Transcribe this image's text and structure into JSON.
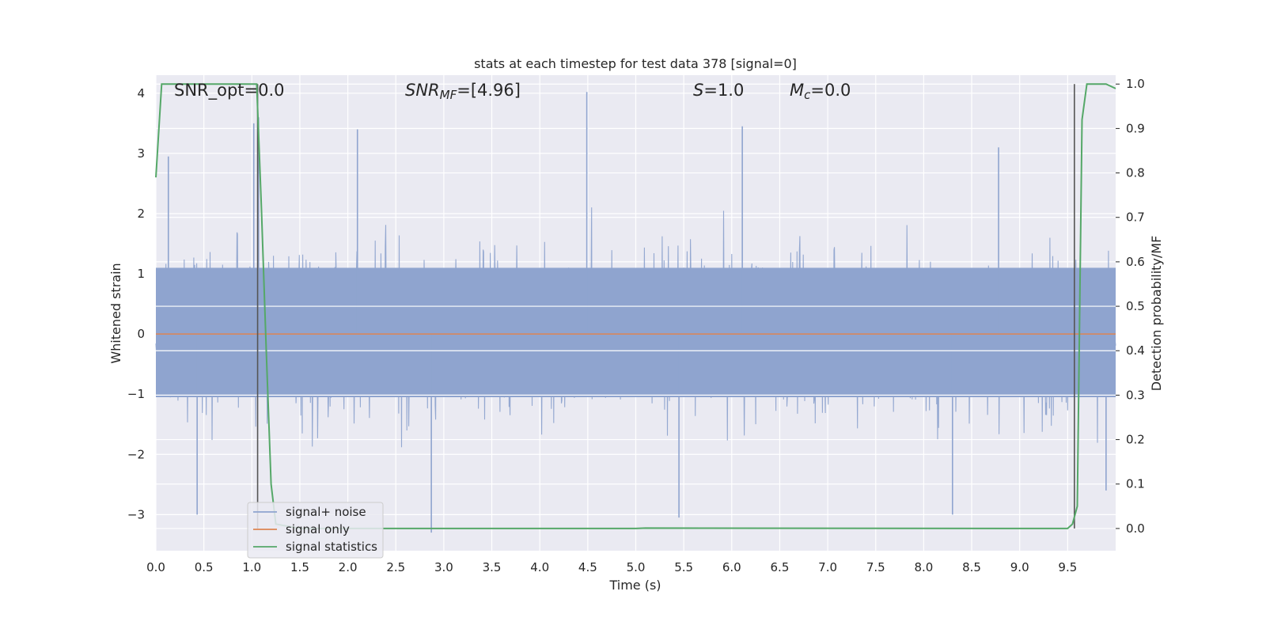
{
  "chart_data": {
    "type": "line",
    "title": "stats at each timestep for test data 378 [signal=0]",
    "xlabel": "Time (s)",
    "ylabel": "Whitened strain",
    "ylabel_right": "Detection probability/MF",
    "xlim": [
      0.0,
      10.0
    ],
    "ylim": [
      -3.6,
      4.3
    ],
    "ylim_right": [
      -0.05,
      1.02
    ],
    "x_ticks": [
      "0.0",
      "0.5",
      "1.0",
      "1.5",
      "2.0",
      "2.5",
      "3.0",
      "3.5",
      "4.0",
      "4.5",
      "5.0",
      "5.5",
      "6.0",
      "6.5",
      "7.0",
      "7.5",
      "8.0",
      "8.5",
      "9.0",
      "9.5"
    ],
    "y_ticks": [
      "−3",
      "−2",
      "−1",
      "0",
      "1",
      "2",
      "3",
      "4"
    ],
    "y_right_ticks": [
      "0.0",
      "0.1",
      "0.2",
      "0.3",
      "0.4",
      "0.5",
      "0.6",
      "0.7",
      "0.8",
      "0.9",
      "1.0"
    ],
    "grid": true,
    "legend_position": "lower-left",
    "annotations": {
      "snr_opt": "SNR_opt=0.0",
      "snr_mf_sym": "SNR",
      "snr_mf_sub": "MF",
      "snr_mf_val": "=[4.96]",
      "s_sym": "S",
      "s_val": "=1.0",
      "mc_sym": "M",
      "mc_sub": "c",
      "mc_val": "=0.0"
    },
    "series": [
      {
        "name": "signal+ noise",
        "color": "#8fa4cf",
        "description_values": "whitened noise, approx. Gaussian, std ~1",
        "envelope_mid_top": 1.1,
        "envelope_mid_bottom": -1.05,
        "peaks": [
          {
            "x": 0.13,
            "y": 2.95
          },
          {
            "x": 1.02,
            "y": 3.5
          },
          {
            "x": 1.07,
            "y": 3.6
          },
          {
            "x": 2.1,
            "y": 3.4
          },
          {
            "x": 4.49,
            "y": 4.02
          },
          {
            "x": 6.11,
            "y": 3.45
          },
          {
            "x": 8.78,
            "y": 3.1
          },
          {
            "x": 0.43,
            "y": -3.0
          },
          {
            "x": 2.87,
            "y": -3.3
          },
          {
            "x": 5.45,
            "y": -3.05
          },
          {
            "x": 8.3,
            "y": -3.0
          },
          {
            "x": 9.9,
            "y": -2.6
          }
        ]
      },
      {
        "name": "signal only",
        "color": "#dd8452",
        "x": [
          0.0,
          10.0
        ],
        "y": [
          0.0,
          0.0
        ]
      },
      {
        "name": "signal statistics",
        "color": "#55a868",
        "axis": "right",
        "x": [
          0.0,
          0.06,
          0.12,
          0.5,
          1.0,
          1.05,
          1.1,
          1.15,
          1.2,
          1.25,
          1.5,
          4.5,
          5.0,
          5.1,
          9.0,
          9.45,
          9.5,
          9.55,
          9.6,
          9.65,
          9.7,
          9.8,
          9.9,
          10.0
        ],
        "y": [
          0.79,
          1.0,
          1.0,
          1.0,
          1.0,
          1.0,
          0.72,
          0.4,
          0.1,
          0.01,
          0.0,
          0.0,
          0.0,
          0.001,
          0.0,
          0.0,
          0.0,
          0.01,
          0.05,
          0.92,
          1.0,
          1.0,
          1.0,
          0.99
        ]
      }
    ],
    "vertical_markers": [
      {
        "x": 1.06,
        "color": "#555555"
      },
      {
        "x": 9.57,
        "color": "#555555"
      }
    ]
  }
}
